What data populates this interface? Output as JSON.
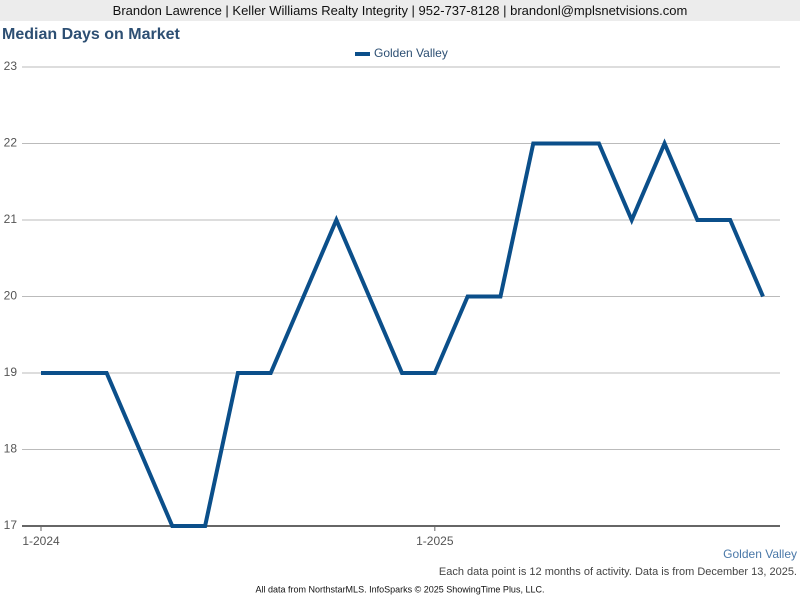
{
  "header": {
    "text": "Brandon Lawrence | Keller Williams Realty Integrity | 952-737-8128 | brandonl@mplsnetvisions.com"
  },
  "chart_data": {
    "type": "line",
    "title": "Median Days on Market",
    "categories": [
      "1-2024",
      null,
      null,
      null,
      null,
      null,
      null,
      null,
      null,
      null,
      null,
      null,
      "1-2025",
      null,
      null,
      null,
      null,
      null,
      null,
      null,
      null,
      null,
      null
    ],
    "series": [
      {
        "name": "Golden Valley",
        "color": "#0b4f8a",
        "values": [
          19,
          19,
          19,
          18,
          17,
          17,
          19,
          19,
          20,
          21,
          20,
          19,
          19,
          20,
          20,
          22,
          22,
          22,
          21,
          22,
          21,
          21,
          20
        ]
      }
    ],
    "ylim": [
      17,
      23
    ],
    "yticks": [
      17,
      18,
      19,
      20,
      21,
      22,
      23
    ],
    "grid": true,
    "legend": "top",
    "area_label": "Golden Valley",
    "note": "Each data point is 12 months of activity. Data is from December 13, 2025."
  },
  "footer": {
    "text": "All data from NorthstarMLS. InfoSparks © 2025 ShowingTime Plus, LLC."
  }
}
